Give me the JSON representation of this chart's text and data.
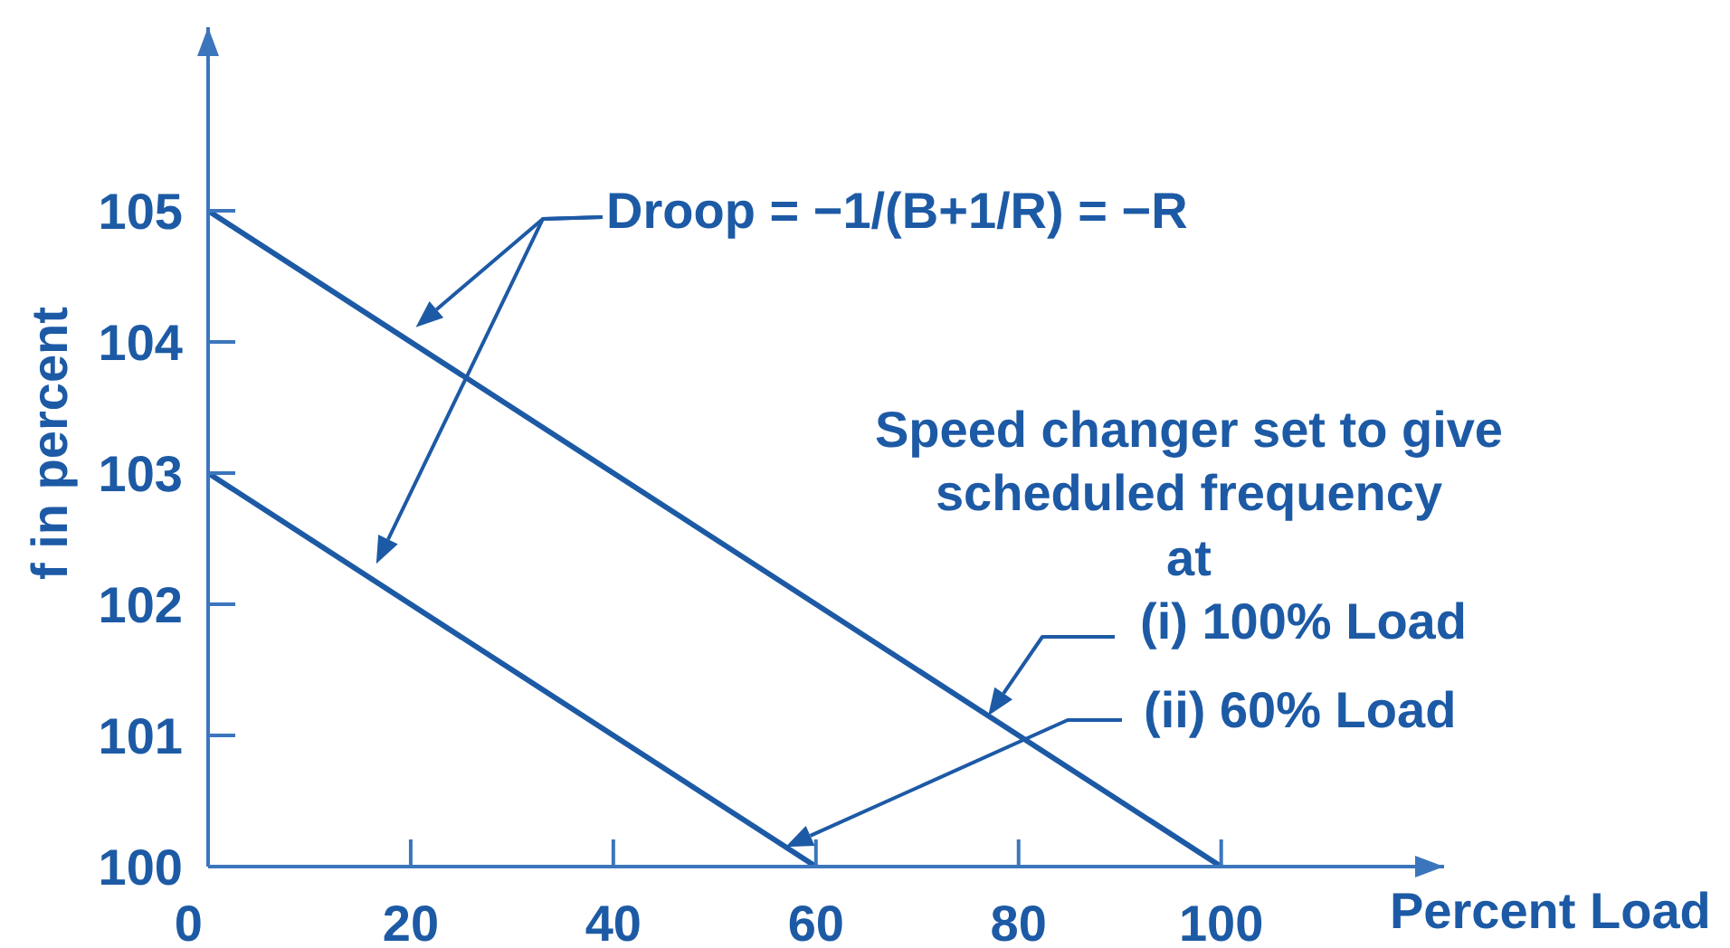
{
  "chart_data": {
    "type": "line",
    "xlabel": "Percent Load",
    "ylabel": "f in percent",
    "series": [
      {
        "color": "#1d5aa5",
        "x": [
          0,
          100
        ],
        "values": [
          105,
          100
        ]
      },
      {
        "color": "#1d5aa5",
        "x": [
          0,
          60
        ],
        "values": [
          103,
          100
        ]
      }
    ],
    "xlim": [
      0,
      122
    ],
    "xticks": [
      0,
      20,
      40,
      60,
      80,
      100
    ],
    "ylim": [
      100,
      106.4
    ],
    "yticks": [
      100,
      101,
      102,
      103,
      104,
      105
    ],
    "annotations": [
      "Droop = −1/(B+1/R) = −R",
      "Speed changer set to give\nscheduled frequency\nat",
      "(i) 100% Load",
      "(ii) 60% Load"
    ]
  }
}
